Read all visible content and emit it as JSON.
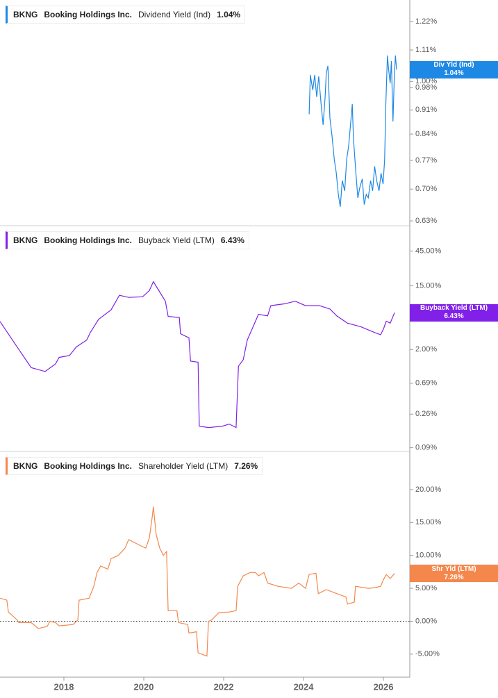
{
  "chart_data": [
    {
      "type": "line",
      "log": true,
      "ticker": "BKNG",
      "company": "Booking Holdings Inc.",
      "current_value_label": "1.04%",
      "badge_label": "Div Yld (Ind)",
      "xlim": [
        2016.4,
        2026.66
      ],
      "ylim": [
        0.62,
        1.31
      ],
      "yticks": [
        {
          "value": 1.22,
          "label": "1.22%"
        },
        {
          "value": 1.11,
          "label": "1.11%"
        },
        {
          "value": 1.0,
          "label": "1.00%"
        },
        {
          "value": 0.98,
          "label": "0.98%"
        },
        {
          "value": 0.91,
          "label": "0.91%"
        },
        {
          "value": 0.84,
          "label": "0.84%"
        },
        {
          "value": 0.77,
          "label": "0.77%"
        },
        {
          "value": 0.7,
          "label": "0.70%"
        },
        {
          "value": 0.63,
          "label": "0.63%"
        }
      ],
      "x": [
        2024.14,
        2024.17,
        2024.23,
        2024.28,
        2024.33,
        2024.38,
        2024.44,
        2024.49,
        2024.54,
        2024.57,
        2024.61,
        2024.66,
        2024.71,
        2024.77,
        2024.82,
        2024.87,
        2024.92,
        2024.97,
        2025.03,
        2025.08,
        2025.13,
        2025.19,
        2025.22,
        2025.25,
        2025.31,
        2025.36,
        2025.41,
        2025.47,
        2025.52,
        2025.57,
        2025.62,
        2025.68,
        2025.73,
        2025.78,
        2025.83,
        2025.89,
        2025.94,
        2025.99,
        2026.03,
        2026.06,
        2026.1,
        2026.13,
        2026.17,
        2026.2,
        2026.24,
        2026.27,
        2026.3,
        2026.33
      ],
      "series": [
        {
          "name": "Dividend Yield (Ind)",
          "color": "#1e88e5",
          "values": [
            0.897,
            1.022,
            0.972,
            1.022,
            0.95,
            1.017,
            0.928,
            0.866,
            0.95,
            1.029,
            1.053,
            0.886,
            0.837,
            0.772,
            0.738,
            0.688,
            0.66,
            0.72,
            0.696,
            0.772,
            0.808,
            0.886,
            0.928,
            0.827,
            0.738,
            0.68,
            0.704,
            0.724,
            0.665,
            0.688,
            0.68,
            0.72,
            0.696,
            0.755,
            0.72,
            0.696,
            0.738,
            0.712,
            0.772,
            0.928,
            1.09,
            1.041,
            0.994,
            1.07,
            0.876,
            1.006,
            1.09,
            1.04
          ]
        }
      ]
    },
    {
      "type": "line",
      "log": true,
      "ticker": "BKNG",
      "company": "Booking Holdings Inc.",
      "current_value_label": "6.43%",
      "badge_label": "Buyback Yield (LTM)",
      "xlim": [
        2016.4,
        2026.66
      ],
      "ylim": [
        0.08,
        100
      ],
      "yticks": [
        {
          "value": 45,
          "label": "45.00%"
        },
        {
          "value": 15,
          "label": "15.00%"
        },
        {
          "value": 2,
          "label": "2.00%"
        },
        {
          "value": 0.69,
          "label": "0.69%"
        },
        {
          "value": 0.26,
          "label": "0.26%"
        },
        {
          "value": 0.09,
          "label": "0.09%"
        }
      ],
      "x": [
        2016.4,
        2016.83,
        2017.18,
        2017.53,
        2017.79,
        2017.88,
        2018.14,
        2018.31,
        2018.57,
        2018.66,
        2018.87,
        2019.18,
        2019.39,
        2019.62,
        2019.97,
        2020.14,
        2020.24,
        2020.4,
        2020.54,
        2020.61,
        2020.89,
        2020.92,
        2021.13,
        2021.17,
        2021.36,
        2021.39,
        2021.62,
        2021.97,
        2022.14,
        2022.31,
        2022.37,
        2022.49,
        2022.59,
        2022.66,
        2022.83,
        2022.87,
        2023.1,
        2023.18,
        2023.53,
        2023.79,
        2024.05,
        2024.4,
        2024.66,
        2024.83,
        2025.1,
        2025.44,
        2025.79,
        2025.93,
        2026.0,
        2026.07,
        2026.17,
        2026.28
      ],
      "series": [
        {
          "name": "Buyback Yield (LTM)",
          "color": "#8020e8",
          "values": [
            4.85,
            2.17,
            1.13,
            1.0,
            1.27,
            1.56,
            1.66,
            2.17,
            2.7,
            3.42,
            5.2,
            7.0,
            11.1,
            10.4,
            10.6,
            12.9,
            17.1,
            12.3,
            9.2,
            5.7,
            5.5,
            3.3,
            2.9,
            1.39,
            1.34,
            0.178,
            0.17,
            0.178,
            0.19,
            0.17,
            1.18,
            1.45,
            2.7,
            3.3,
            5.4,
            6.1,
            5.8,
            8.0,
            8.5,
            9.2,
            8.0,
            8.0,
            7.2,
            5.8,
            4.6,
            4.1,
            3.4,
            3.2,
            3.8,
            4.9,
            4.6,
            6.43
          ]
        }
      ]
    },
    {
      "type": "line",
      "log": false,
      "ticker": "BKNG",
      "company": "Booking Holdings Inc.",
      "current_value_label": "7.26%",
      "badge_label": "Shr Yld (LTM)",
      "xlim": [
        2016.4,
        2026.66
      ],
      "ylim": [
        -8.5,
        25.8
      ],
      "hline": 0,
      "xticks": [
        2018,
        2020,
        2022,
        2024,
        2026
      ],
      "yticks": [
        {
          "value": 20,
          "label": "20.00%"
        },
        {
          "value": 15,
          "label": "15.00%"
        },
        {
          "value": 10,
          "label": "10.00%"
        },
        {
          "value": 5,
          "label": "5.00%"
        },
        {
          "value": 0,
          "label": "0.00%"
        },
        {
          "value": -5,
          "label": "-5.00%"
        }
      ],
      "x": [
        2016.4,
        2016.57,
        2016.61,
        2016.83,
        2016.87,
        2017.18,
        2017.36,
        2017.58,
        2017.65,
        2017.79,
        2017.88,
        2018.23,
        2018.35,
        2018.38,
        2018.63,
        2018.75,
        2018.83,
        2018.92,
        2019.1,
        2019.18,
        2019.36,
        2019.53,
        2019.62,
        2019.88,
        2020.05,
        2020.14,
        2020.21,
        2020.24,
        2020.31,
        2020.4,
        2020.49,
        2020.57,
        2020.61,
        2020.83,
        2020.87,
        2021.1,
        2021.13,
        2021.32,
        2021.36,
        2021.58,
        2021.62,
        2021.7,
        2021.88,
        2022.14,
        2022.31,
        2022.35,
        2022.49,
        2022.66,
        2022.8,
        2022.87,
        2023.01,
        2023.1,
        2023.36,
        2023.7,
        2023.88,
        2024.05,
        2024.14,
        2024.31,
        2024.37,
        2024.57,
        2024.92,
        2025.06,
        2025.1,
        2025.27,
        2025.3,
        2025.62,
        2025.79,
        2025.93,
        2026.0,
        2026.07,
        2026.17,
        2026.28
      ],
      "series": [
        {
          "name": "Shareholder Yield (LTM)",
          "color": "#f4874b",
          "values": [
            3.5,
            3.2,
            1.4,
            0.2,
            -0.2,
            -0.2,
            -1.1,
            -0.8,
            0,
            -0.2,
            -0.7,
            -0.5,
            0.2,
            3.2,
            3.5,
            5.3,
            7.4,
            8.4,
            7.9,
            9.5,
            10.0,
            11.1,
            12.4,
            11.6,
            11.1,
            12.7,
            15.8,
            17.4,
            13.2,
            11.1,
            10.0,
            10.6,
            1.6,
            1.6,
            -0.2,
            -0.5,
            -1.8,
            -1.6,
            -4.8,
            -5.3,
            0,
            0.2,
            1.3,
            1.4,
            1.6,
            5.3,
            6.9,
            7.4,
            7.4,
            6.9,
            7.4,
            5.8,
            5.3,
            5.0,
            5.8,
            5.0,
            7.1,
            7.3,
            4.2,
            4.8,
            4.0,
            3.7,
            2.6,
            2.9,
            5.3,
            5.0,
            5.1,
            5.3,
            6.3,
            7.1,
            6.5,
            7.26
          ]
        }
      ]
    }
  ]
}
